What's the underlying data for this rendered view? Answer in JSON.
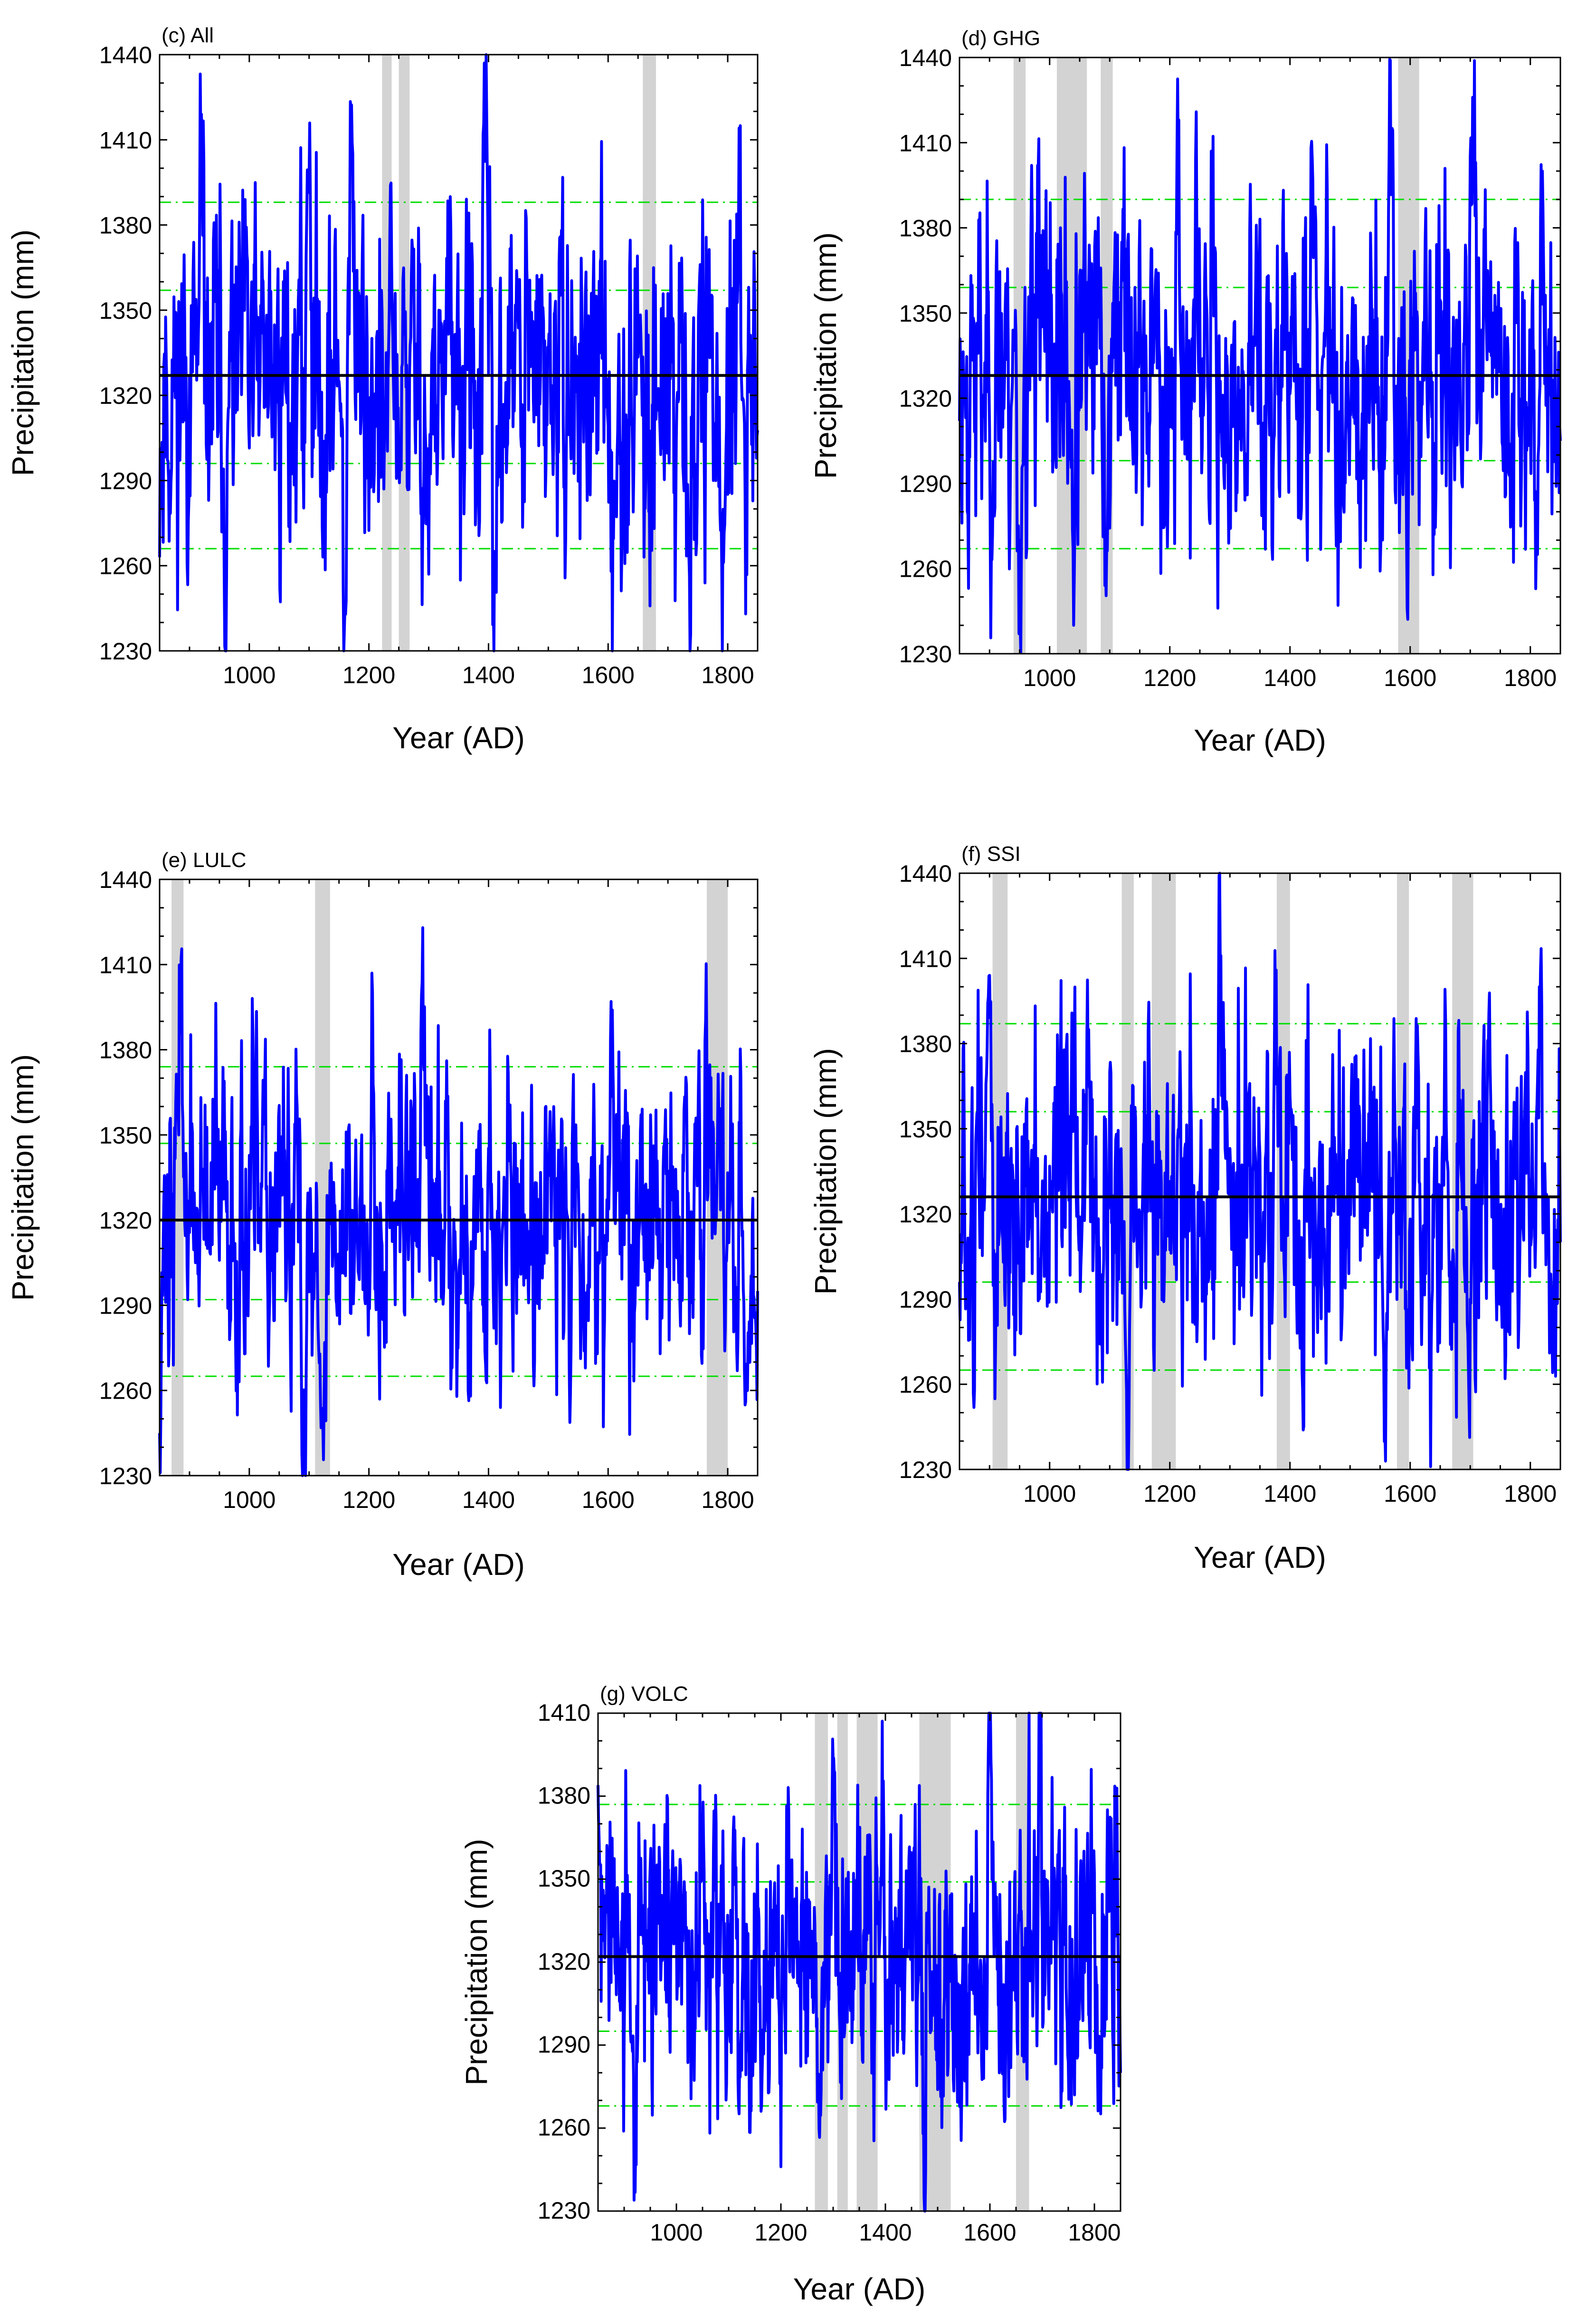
{
  "colors": {
    "series": "#0000ff",
    "mean_line": "#000000",
    "threshold_line": "#00dd00",
    "shading": "#d3d3d3",
    "background": "#ffffff"
  },
  "chart_data": [
    {
      "id": "c",
      "type": "line",
      "title": "(c) All",
      "xlabel": "Year (AD)",
      "ylabel": "Precipitation (mm)",
      "xlim": [
        850,
        1850
      ],
      "ylim": [
        1230,
        1440
      ],
      "xticks": [
        1000,
        1200,
        1400,
        1600,
        1800
      ],
      "yticks": [
        1230,
        1260,
        1290,
        1320,
        1350,
        1380,
        1410,
        1440
      ],
      "mean": 1327,
      "thresholds": [
        1266,
        1296,
        1357,
        1388
      ],
      "shaded_periods": [
        [
          1222,
          1238
        ],
        [
          1250,
          1268
        ],
        [
          1658,
          1680
        ]
      ],
      "key_points": [
        [
          850,
          1263
        ],
        [
          920,
          1419
        ],
        [
          962,
          1256
        ],
        [
          1100,
          1397
        ],
        [
          1160,
          1246
        ],
        [
          1170,
          1418
        ],
        [
          1225,
          1287
        ],
        [
          1300,
          1257
        ],
        [
          1395,
          1409
        ],
        [
          1410,
          1265
        ],
        [
          1605,
          1258
        ],
        [
          1660,
          1263
        ],
        [
          1735,
          1264
        ],
        [
          1790,
          1259
        ],
        [
          1830,
          1243
        ]
      ],
      "seed": 11
    },
    {
      "id": "d",
      "type": "line",
      "title": "(d) GHG",
      "xlabel": "Year (AD)",
      "ylabel": "Precipitation (mm)",
      "xlim": [
        850,
        1850
      ],
      "ylim": [
        1230,
        1440
      ],
      "xticks": [
        1000,
        1200,
        1400,
        1600,
        1800
      ],
      "yticks": [
        1230,
        1260,
        1290,
        1320,
        1350,
        1380,
        1410,
        1440
      ],
      "mean": 1328,
      "thresholds": [
        1267,
        1298,
        1359,
        1390
      ],
      "shaded_periods": [
        [
          940,
          960
        ],
        [
          1012,
          1062
        ],
        [
          1085,
          1105
        ],
        [
          1580,
          1615
        ]
      ],
      "key_points": [
        [
          850,
          1312
        ],
        [
          950,
          1270
        ],
        [
          980,
          1402
        ],
        [
          1040,
          1240
        ],
        [
          1095,
          1268
        ],
        [
          1120,
          1375
        ],
        [
          1215,
          1418
        ],
        [
          1300,
          1294
        ],
        [
          1440,
          1386
        ],
        [
          1570,
          1415
        ],
        [
          1595,
          1246
        ],
        [
          1640,
          1272
        ],
        [
          1705,
          1418
        ],
        [
          1820,
          1400
        ],
        [
          1850,
          1305
        ]
      ],
      "seed": 23
    },
    {
      "id": "e",
      "type": "line",
      "title": "(e) LULC",
      "xlabel": "Year (AD)",
      "ylabel": "Precipitation (mm)",
      "xlim": [
        850,
        1850
      ],
      "ylim": [
        1230,
        1440
      ],
      "xticks": [
        1000,
        1200,
        1400,
        1600,
        1800
      ],
      "yticks": [
        1230,
        1260,
        1290,
        1320,
        1350,
        1380,
        1410,
        1440
      ],
      "mean": 1320,
      "thresholds": [
        1265,
        1292,
        1347,
        1374
      ],
      "shaded_periods": [
        [
          870,
          890
        ],
        [
          1110,
          1135
        ],
        [
          1765,
          1800
        ]
      ],
      "key_points": [
        [
          850,
          1245
        ],
        [
          885,
          1386
        ],
        [
          1090,
          1246
        ],
        [
          1125,
          1255
        ],
        [
          1205,
          1407
        ],
        [
          1290,
          1423
        ],
        [
          1370,
          1258
        ],
        [
          1420,
          1254
        ],
        [
          1605,
          1397
        ],
        [
          1765,
          1381
        ],
        [
          1830,
          1256
        ],
        [
          1850,
          1295
        ]
      ],
      "seed": 37
    },
    {
      "id": "f",
      "type": "line",
      "title": "(f) SSI",
      "xlabel": "Year (AD)",
      "ylabel": "Precipitation (mm)",
      "xlim": [
        850,
        1850
      ],
      "ylim": [
        1230,
        1440
      ],
      "xticks": [
        1000,
        1200,
        1400,
        1600,
        1800
      ],
      "yticks": [
        1230,
        1260,
        1290,
        1320,
        1350,
        1380,
        1410,
        1440
      ],
      "mean": 1326,
      "thresholds": [
        1265,
        1296,
        1356,
        1387
      ],
      "shaded_periods": [
        [
          905,
          930
        ],
        [
          1120,
          1140
        ],
        [
          1170,
          1210
        ],
        [
          1378,
          1400
        ],
        [
          1578,
          1598
        ],
        [
          1670,
          1705
        ]
      ],
      "key_points": [
        [
          850,
          1296
        ],
        [
          900,
          1404
        ],
        [
          1130,
          1236
        ],
        [
          1285,
          1411
        ],
        [
          1420,
          1265
        ],
        [
          1595,
          1270
        ],
        [
          1700,
          1290
        ],
        [
          1815,
          1400
        ],
        [
          1850,
          1310
        ]
      ],
      "seed": 51
    },
    {
      "id": "g",
      "type": "line",
      "title": "(g) VOLC",
      "xlabel": "Year (AD)",
      "ylabel": "Precipitation (mm)",
      "xlim": [
        850,
        1850
      ],
      "ylim": [
        1230,
        1410
      ],
      "xticks": [
        1000,
        1200,
        1400,
        1600,
        1800
      ],
      "yticks": [
        1230,
        1260,
        1290,
        1320,
        1350,
        1380,
        1410
      ],
      "mean": 1322,
      "thresholds": [
        1268,
        1295,
        1349,
        1377
      ],
      "shaded_periods": [
        [
          1265,
          1290
        ],
        [
          1308,
          1328
        ],
        [
          1345,
          1385
        ],
        [
          1465,
          1525
        ],
        [
          1650,
          1675
        ]
      ],
      "key_points": [
        [
          850,
          1384
        ],
        [
          920,
          1258
        ],
        [
          1200,
          1246
        ],
        [
          1275,
          1268
        ],
        [
          1300,
          1393
        ],
        [
          1475,
          1230
        ],
        [
          1510,
          1280
        ],
        [
          1600,
          1396
        ],
        [
          1630,
          1286
        ],
        [
          1695,
          1398
        ],
        [
          1850,
          1280
        ]
      ],
      "seed": 77
    }
  ]
}
